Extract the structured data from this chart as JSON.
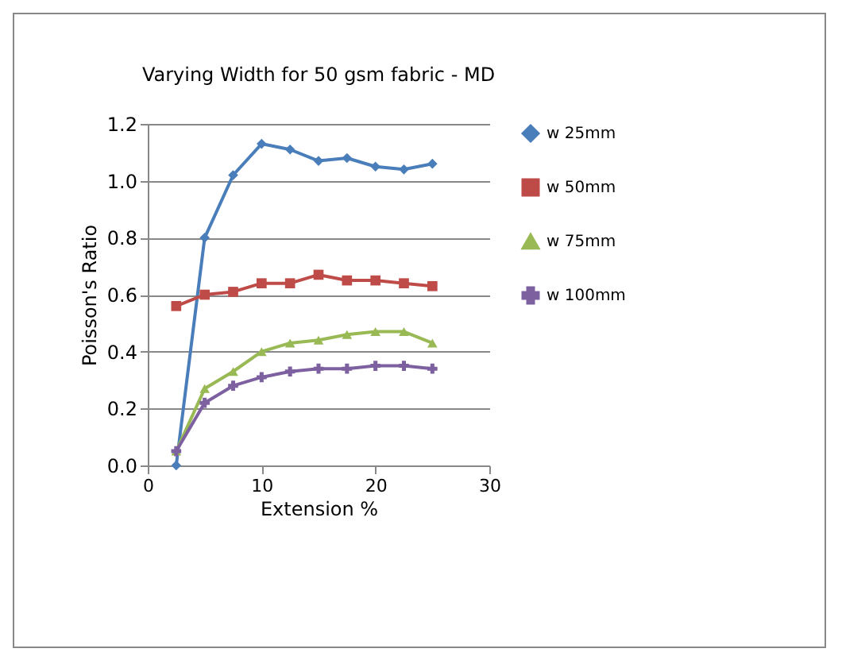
{
  "chart_data": {
    "type": "line",
    "title": "Varying Width for 50 gsm fabric - MD",
    "xlabel": "Extension %",
    "ylabel": "Poisson's Ratio",
    "x": [
      2.5,
      5,
      7.5,
      10,
      12.5,
      15,
      17.5,
      20,
      22.5,
      25
    ],
    "series": [
      {
        "name": "w 25mm",
        "color": "#4a7ebb",
        "marker": "diamond",
        "values": [
          0.0,
          0.8,
          1.02,
          1.13,
          1.11,
          1.07,
          1.08,
          1.05,
          1.04,
          1.06
        ]
      },
      {
        "name": "w 50mm",
        "color": "#be4b48",
        "marker": "square",
        "values": [
          0.56,
          0.6,
          0.61,
          0.64,
          0.64,
          0.67,
          0.65,
          0.65,
          0.64,
          0.63
        ]
      },
      {
        "name": "w 75mm",
        "color": "#98b954",
        "marker": "triangle",
        "values": [
          0.05,
          0.27,
          0.33,
          0.4,
          0.43,
          0.44,
          0.46,
          0.47,
          0.47,
          0.43
        ]
      },
      {
        "name": "w 100mm",
        "color": "#7d60a0",
        "marker": "cross",
        "values": [
          0.05,
          0.22,
          0.28,
          0.31,
          0.33,
          0.34,
          0.34,
          0.35,
          0.35,
          0.34
        ]
      }
    ],
    "xlim": [
      0,
      30
    ],
    "xticks": [
      0,
      10,
      20,
      30
    ],
    "ylim": [
      0,
      1.2
    ],
    "yticks": [
      {
        "value": 0,
        "label": "0.0"
      },
      {
        "value": 0.2,
        "label": "0.2"
      },
      {
        "value": 0.4,
        "label": "0.4"
      },
      {
        "value": 0.6,
        "label": "0.6"
      },
      {
        "value": 0.8,
        "label": "0.8"
      },
      {
        "value": 1.0,
        "label": "1.0"
      },
      {
        "value": 1.2,
        "label": "1.2"
      }
    ],
    "grid": "y",
    "legend": "right",
    "line_style": "solid"
  }
}
